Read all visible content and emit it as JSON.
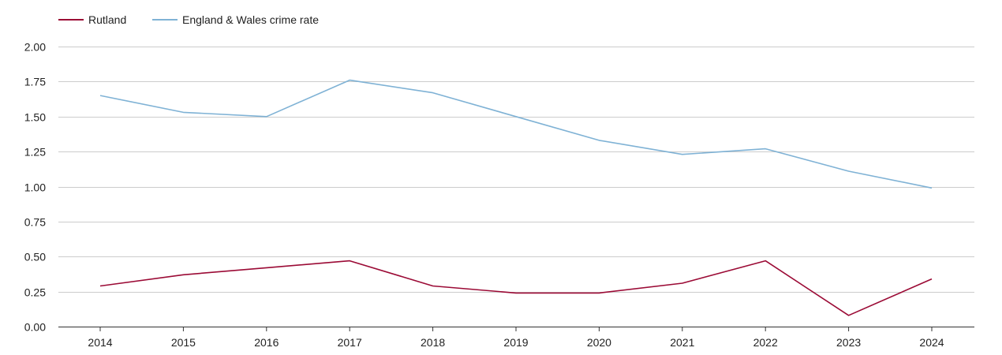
{
  "chart_data": {
    "type": "line",
    "title": "",
    "xlabel": "",
    "ylabel": "",
    "categories": [
      "2014",
      "2015",
      "2016",
      "2017",
      "2018",
      "2019",
      "2020",
      "2021",
      "2022",
      "2023",
      "2024"
    ],
    "ylim": [
      0,
      2
    ],
    "yticks": [
      "0.00",
      "0.25",
      "0.50",
      "0.75",
      "1.00",
      "1.25",
      "1.50",
      "1.75",
      "2.00"
    ],
    "grid": true,
    "legend_position": "top-left",
    "series": [
      {
        "name": "Rutland",
        "color": "#9b0a35",
        "values": [
          0.29,
          0.37,
          0.42,
          0.47,
          0.29,
          0.24,
          0.24,
          0.31,
          0.47,
          0.08,
          0.34
        ]
      },
      {
        "name": "England & Wales crime rate",
        "color": "#7fb2d5",
        "values": [
          1.65,
          1.53,
          1.5,
          1.76,
          1.67,
          1.5,
          1.33,
          1.23,
          1.27,
          1.11,
          0.99
        ]
      }
    ]
  }
}
